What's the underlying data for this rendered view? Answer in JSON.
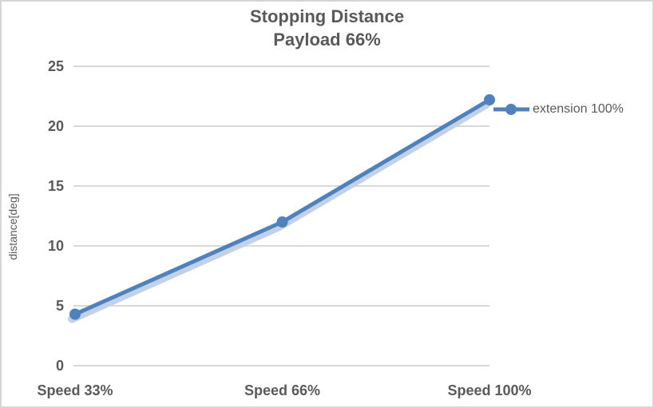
{
  "chart_data": {
    "type": "line",
    "title": "Stopping Distance",
    "subtitle": "Payload 66%",
    "categories": [
      "Speed 33%",
      "Speed 66%",
      "Speed 100%"
    ],
    "series": [
      {
        "name": "extension 100%",
        "values": [
          4.3,
          12,
          22.2
        ]
      }
    ],
    "xlabel": "",
    "ylabel": "distance[deg]",
    "ylim": [
      0,
      25
    ],
    "yticks": [
      0,
      5,
      10,
      15,
      20,
      25
    ],
    "grid": true,
    "legend_position": "right",
    "marker": "circle",
    "colors": {
      "series": "#4F81BD",
      "series_glow": "#C0D1E9",
      "gridline": "#D9D9D9",
      "text": "#595959",
      "border": "#D6D6D6",
      "background": "#FFFFFF"
    }
  },
  "legend": {
    "items": [
      {
        "label": "extension 100%",
        "color": "#4F81BD"
      }
    ]
  }
}
